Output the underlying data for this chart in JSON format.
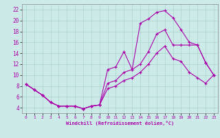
{
  "xlabel": "Windchill (Refroidissement éolien,°C)",
  "background_color": "#cceae7",
  "grid_color": "#aad4d0",
  "line_color": "#aa00aa",
  "spine_color": "#888888",
  "xlim": [
    -0.5,
    23.5
  ],
  "ylim": [
    3,
    23
  ],
  "xticks": [
    0,
    1,
    2,
    3,
    4,
    5,
    6,
    7,
    8,
    9,
    10,
    11,
    12,
    13,
    14,
    15,
    16,
    17,
    18,
    19,
    20,
    21,
    22,
    23
  ],
  "yticks": [
    4,
    6,
    8,
    10,
    12,
    14,
    16,
    18,
    20,
    22
  ],
  "line1_x": [
    0,
    1,
    2,
    3,
    4,
    5,
    6,
    7,
    8,
    9,
    10,
    11,
    12,
    13,
    14,
    15,
    16,
    17,
    18,
    19,
    20,
    21,
    22,
    23
  ],
  "line1_y": [
    8.3,
    7.3,
    6.3,
    5.0,
    4.3,
    4.3,
    4.3,
    3.8,
    4.3,
    4.5,
    11.0,
    11.5,
    14.3,
    11.0,
    19.5,
    20.3,
    21.5,
    21.8,
    20.5,
    18.3,
    16.0,
    15.5,
    12.3,
    10.0
  ],
  "line2_x": [
    0,
    1,
    2,
    3,
    4,
    5,
    6,
    7,
    8,
    9,
    10,
    11,
    12,
    13,
    14,
    15,
    16,
    17,
    18,
    19,
    20,
    21,
    22,
    23
  ],
  "line2_y": [
    8.3,
    7.3,
    6.3,
    5.0,
    4.3,
    4.3,
    4.3,
    3.8,
    4.3,
    4.5,
    8.5,
    9.0,
    10.5,
    11.0,
    12.0,
    14.3,
    17.5,
    18.3,
    15.5,
    15.5,
    15.5,
    15.5,
    12.3,
    10.0
  ],
  "line3_x": [
    0,
    1,
    2,
    3,
    4,
    5,
    6,
    7,
    8,
    9,
    10,
    11,
    12,
    13,
    14,
    15,
    16,
    17,
    18,
    19,
    20,
    21,
    22,
    23
  ],
  "line3_y": [
    8.3,
    7.3,
    6.3,
    5.0,
    4.3,
    4.3,
    4.3,
    3.8,
    4.3,
    4.5,
    7.5,
    8.0,
    9.0,
    9.5,
    10.5,
    12.0,
    14.0,
    15.3,
    13.0,
    12.5,
    10.5,
    9.5,
    8.5,
    10.0
  ]
}
